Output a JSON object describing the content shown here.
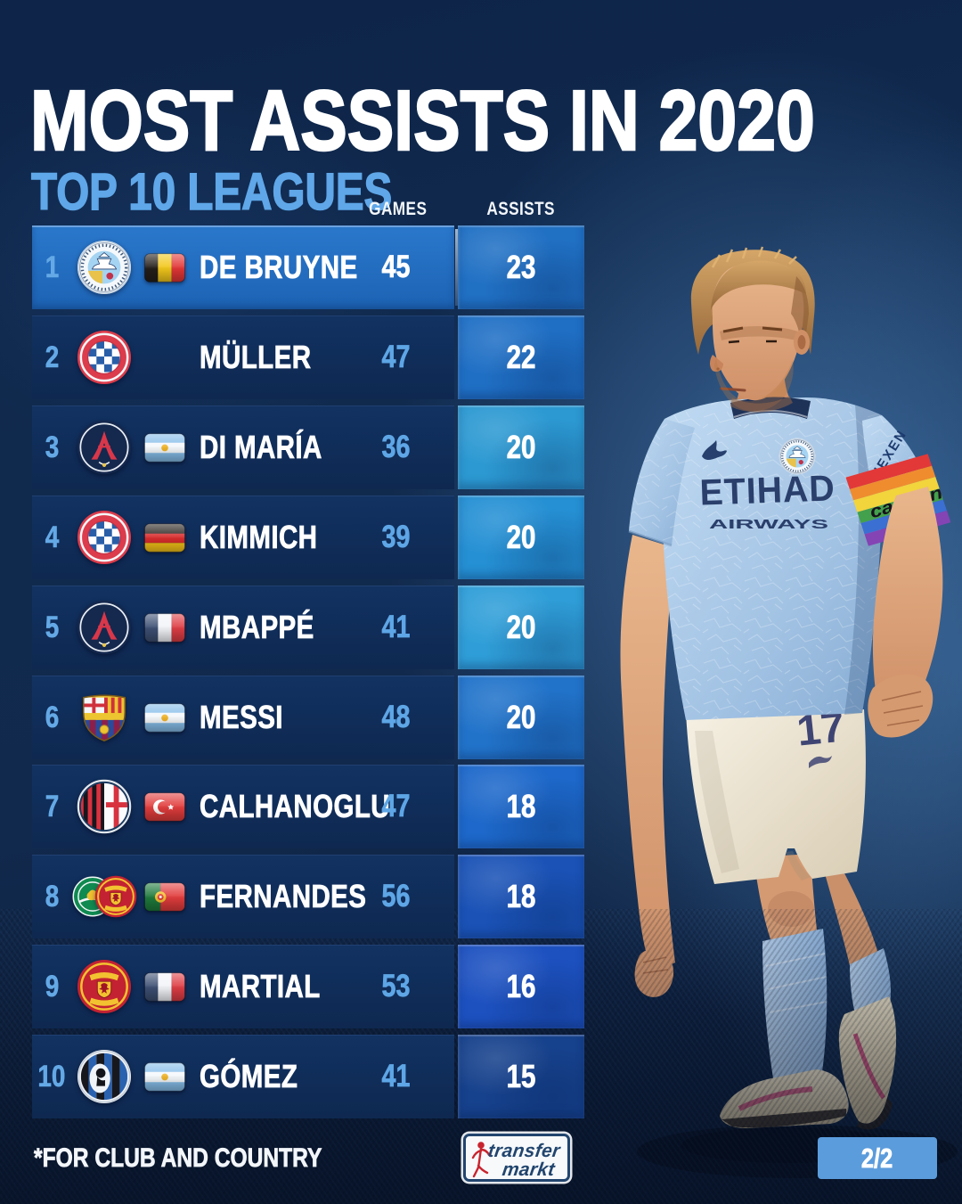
{
  "header": {
    "title": "MOST ASSISTS IN 2020",
    "subtitle": "TOP 10 LEAGUES"
  },
  "columns": {
    "games": "GAMES",
    "assists": "ASSISTS"
  },
  "table": {
    "rows": [
      {
        "rank": "1",
        "clubs": [
          "man-city"
        ],
        "flag": "belgium",
        "name": "DE BRUYNE",
        "games": "45",
        "assists": "23",
        "assist_color": "#2070c4",
        "highlight": true
      },
      {
        "rank": "2",
        "clubs": [
          "bayern"
        ],
        "flag": null,
        "name": "MÜLLER",
        "games": "47",
        "assists": "22",
        "assist_color": "#1f6fc5",
        "highlight": false
      },
      {
        "rank": "3",
        "clubs": [
          "psg"
        ],
        "flag": "argentina",
        "name": "DI MARÍA",
        "games": "36",
        "assists": "20",
        "assist_color": "#2c99d2",
        "highlight": false
      },
      {
        "rank": "4",
        "clubs": [
          "bayern"
        ],
        "flag": "germany",
        "name": "KIMMICH",
        "games": "39",
        "assists": "20",
        "assist_color": "#2590d4",
        "highlight": false
      },
      {
        "rank": "5",
        "clubs": [
          "psg"
        ],
        "flag": "france",
        "name": "MBAPPÉ",
        "games": "41",
        "assists": "20",
        "assist_color": "#2f9ed8",
        "highlight": false
      },
      {
        "rank": "6",
        "clubs": [
          "barcelona"
        ],
        "flag": "argentina",
        "name": "MESSI",
        "games": "48",
        "assists": "20",
        "assist_color": "#2173ca",
        "highlight": false
      },
      {
        "rank": "7",
        "clubs": [
          "milan"
        ],
        "flag": "turkey",
        "name": "CALHANOGLU",
        "games": "47",
        "assists": "18",
        "assist_color": "#1d68ca",
        "highlight": false
      },
      {
        "rank": "8",
        "clubs": [
          "sporting",
          "man-utd"
        ],
        "flag": "portugal",
        "name": "FERNANDES",
        "games": "56",
        "assists": "18",
        "assist_color": "#1a52b6",
        "highlight": false
      },
      {
        "rank": "9",
        "clubs": [
          "man-utd"
        ],
        "flag": "france",
        "name": "MARTIAL",
        "games": "53",
        "assists": "16",
        "assist_color": "#1d51c0",
        "highlight": false
      },
      {
        "rank": "10",
        "clubs": [
          "atalanta"
        ],
        "flag": "argentina",
        "name": "GÓMEZ",
        "games": "41",
        "assists": "15",
        "assist_color": "#16418c",
        "highlight": false
      }
    ]
  },
  "player": {
    "sponsor_line1": "ETIHAD",
    "sponsor_line2": "AIRWAYS",
    "short_number": "17",
    "armband_text": "captain",
    "sleeve_text": "NEXEN"
  },
  "footer": {
    "note": "*FOR CLUB AND COUNTRY",
    "logo_line1": "transfer",
    "logo_line2": "markt",
    "page": "2/2"
  },
  "colors": {
    "accent_light_blue": "#5fa7e8",
    "rank_blue": "#64a9e6",
    "games_normal": "#5ea6e6",
    "games_highlight": "#ffffff",
    "row_highlight": "#2173c6",
    "row_dark": "#0f2a54",
    "page_badge_bg": "#5b9cdc",
    "logo_navy": "#22456e",
    "logo_red": "#c8242e"
  }
}
